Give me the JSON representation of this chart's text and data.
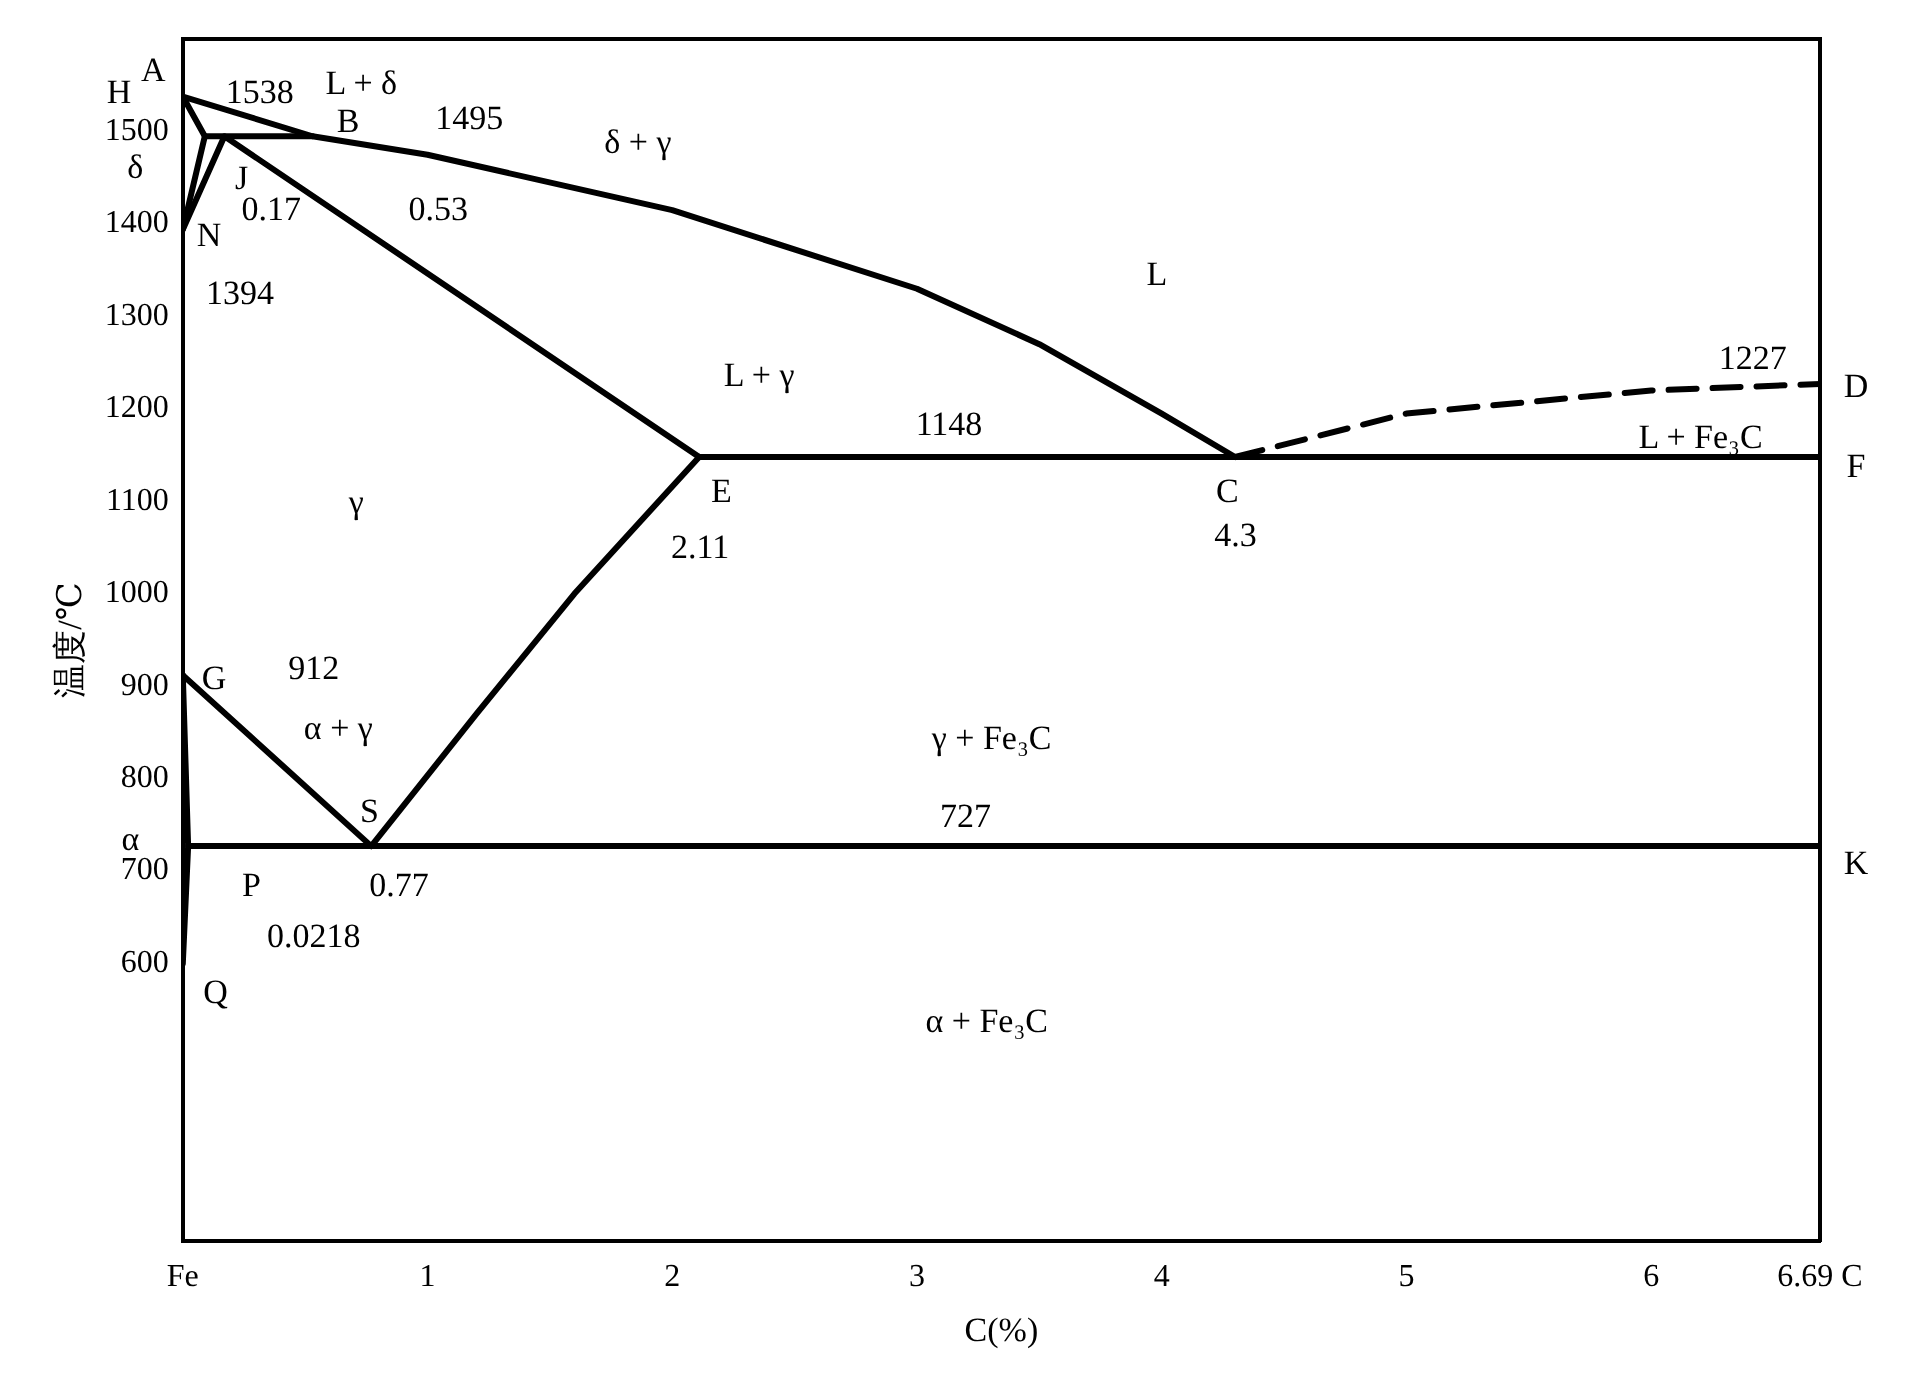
{
  "chart_data": {
    "type": "line",
    "xlabel": "C(%)",
    "ylabel": "温度/℃",
    "xlim": [
      0,
      6.69
    ],
    "ylim": [
      300,
      1600
    ],
    "xticks": [
      {
        "value": 0,
        "label": "Fe"
      },
      1,
      2,
      3,
      4,
      5,
      6,
      {
        "value": 6.69,
        "label": "6.69 C"
      }
    ],
    "yticks": [
      600,
      700,
      800,
      900,
      1000,
      1100,
      1200,
      1300,
      1400,
      1500
    ],
    "grid": false,
    "marker": "none",
    "line_style": "solid",
    "series": [
      {
        "color": "#000000",
        "x": [
          0,
          0.53,
          1,
          2,
          3,
          3.5,
          4,
          4.3
        ],
        "values": [
          1538,
          1495,
          1475,
          1415,
          1330,
          1270,
          1195,
          1148
        ]
      },
      {
        "color": "#000000",
        "x": [
          4.3,
          5,
          6,
          6.69
        ],
        "values": [
          1148,
          1195,
          1220,
          1227
        ],
        "line_style": "dashed"
      },
      {
        "color": "#000000",
        "x": [
          2.11,
          6.69
        ],
        "values": [
          1148,
          1148
        ]
      },
      {
        "color": "#000000",
        "x": [
          0.09,
          0.53
        ],
        "values": [
          1495,
          1495
        ]
      },
      {
        "color": "#000000",
        "x": [
          0,
          0.09,
          0
        ],
        "values": [
          1538,
          1495,
          1394
        ]
      },
      {
        "color": "#000000",
        "x": [
          0,
          0.17,
          2.11
        ],
        "values": [
          1394,
          1495,
          1148
        ]
      },
      {
        "color": "#000000",
        "x": [
          0.77,
          1.2,
          1.6,
          2.11
        ],
        "values": [
          727,
          870,
          1000,
          1148
        ]
      },
      {
        "color": "#000000",
        "x": [
          0,
          0.77
        ],
        "values": [
          912,
          727
        ]
      },
      {
        "color": "#000000",
        "x": [
          0,
          0.0218,
          0
        ],
        "values": [
          912,
          727,
          600
        ]
      },
      {
        "color": "#000000",
        "x": [
          0.0218,
          6.69
        ],
        "values": [
          727,
          727
        ]
      }
    ],
    "annotations": [
      "A",
      "1538",
      "L + δ",
      "H",
      "B",
      "1495",
      "δ + γ",
      "δ",
      "J",
      "0.17",
      "0.53",
      "N",
      "1394",
      "L",
      "1227",
      "D",
      "L + γ",
      "1148",
      "L + Fe₃C",
      "F",
      "γ",
      "E",
      "2.11",
      "C",
      "4.3",
      "G",
      "912",
      "α + γ",
      "S",
      "α",
      "γ + Fe₃C",
      "727",
      "K",
      "P",
      "0.77",
      "0.0218",
      "Q",
      "α + Fe₃C"
    ]
  }
}
